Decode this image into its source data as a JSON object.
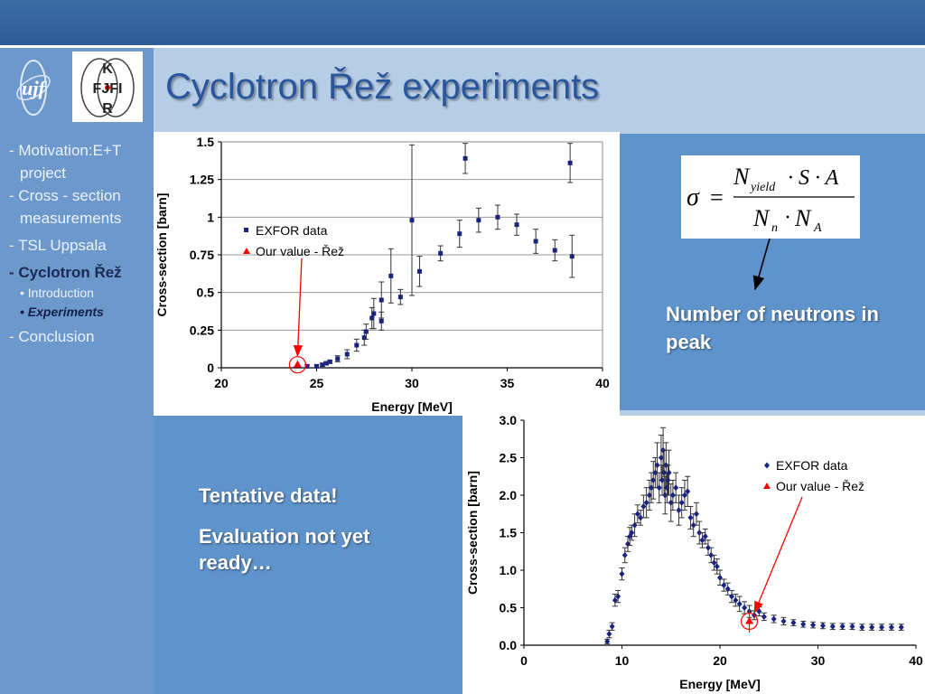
{
  "title": "Cyclotron Řež experiments",
  "logos": {
    "left": "ujf",
    "right": [
      "K",
      "FJFI",
      "R"
    ]
  },
  "sidebar": {
    "items": [
      {
        "label": "- Motivation:E+T",
        "cont": "project"
      },
      {
        "label": "- Cross - section",
        "cont": "measurements"
      },
      {
        "label": "- TSL Uppsala"
      },
      {
        "label": "- Cyclotron Řež",
        "active": true
      },
      {
        "label": "• Introduction",
        "sub": true
      },
      {
        "label": "• Experiments",
        "sub": true,
        "active": true
      },
      {
        "label": "- Conclusion"
      }
    ]
  },
  "formula": {
    "sigma": "σ",
    "eq": "=",
    "num_N": "N",
    "num_sub": "yield",
    "num_rest": "· S · A",
    "den_N1": "N",
    "den_sub1": "n",
    "den_dot": "·",
    "den_N2": "N",
    "den_sub2": "A"
  },
  "annotation": "Number of neutrons in peak",
  "notes": [
    "Tentative data!",
    "Evaluation not yet ready…"
  ],
  "colors": {
    "exfor": "#1a237e",
    "our": "#ff0000",
    "accent": "#2a569e"
  },
  "chart_data": [
    {
      "type": "scatter",
      "xlabel": "Energy [MeV]",
      "ylabel": "Cross-section [barn]",
      "xlim": [
        20,
        40
      ],
      "ylim": [
        0,
        1.5
      ],
      "xticks": [
        "20",
        "25",
        "30",
        "35",
        "40"
      ],
      "yticks": [
        "0",
        "0.25",
        "0.5",
        "0.75",
        "1",
        "1.25",
        "1.5"
      ],
      "grid": true,
      "legend_position": "left-middle",
      "series": [
        {
          "name": "EXFOR data",
          "marker": "square",
          "x": [
            24.5,
            25,
            25.3,
            25.5,
            25.7,
            26.1,
            26.6,
            27.1,
            27.5,
            27.6,
            27.9,
            28.0,
            28.4,
            28.4,
            28.9,
            29.4,
            30,
            30.4,
            31.5,
            32.5,
            32.8,
            33.5,
            34.5,
            35.5,
            36.5,
            37.5,
            38.3,
            38.4
          ],
          "y": [
            0.01,
            0.01,
            0.02,
            0.03,
            0.04,
            0.06,
            0.09,
            0.15,
            0.2,
            0.24,
            0.33,
            0.36,
            0.31,
            0.45,
            0.61,
            0.47,
            0.98,
            0.64,
            0.76,
            0.89,
            1.39,
            0.98,
            1.0,
            0.95,
            0.84,
            0.78,
            1.36,
            0.74
          ],
          "err": [
            0.01,
            0.01,
            0.01,
            0.01,
            0.01,
            0.02,
            0.03,
            0.04,
            0.05,
            0.05,
            0.07,
            0.1,
            0.06,
            0.12,
            0.18,
            0.05,
            0.5,
            0.1,
            0.05,
            0.09,
            0.1,
            0.08,
            0.08,
            0.07,
            0.08,
            0.07,
            0.13,
            0.14
          ]
        },
        {
          "name": "Our value - Řež",
          "marker": "triangle",
          "x": [
            24
          ],
          "y": [
            0.02
          ],
          "err": [
            0.01
          ]
        }
      ]
    },
    {
      "type": "scatter",
      "xlabel": "Energy [MeV]",
      "ylabel": "Cross-section [barn]",
      "xlim": [
        0,
        40
      ],
      "ylim": [
        0,
        3.0
      ],
      "xticks": [
        "0",
        "10",
        "20",
        "30",
        "40"
      ],
      "yticks": [
        "0.0",
        "0.5",
        "1.0",
        "1.5",
        "2.0",
        "2.5",
        "3.0"
      ],
      "grid": false,
      "legend_position": "top-right",
      "series": [
        {
          "name": "EXFOR data",
          "marker": "diamond",
          "x": [
            8.5,
            8.7,
            9.0,
            9.3,
            9.6,
            10.0,
            10.3,
            10.6,
            10.8,
            11.0,
            11.3,
            11.6,
            11.9,
            12.2,
            12.5,
            12.8,
            13.0,
            13.2,
            13.4,
            13.6,
            13.8,
            14.0,
            14.1,
            14.2,
            14.3,
            14.4,
            14.5,
            14.6,
            14.7,
            14.8,
            15.0,
            15.2,
            15.5,
            15.8,
            16.1,
            16.4,
            16.7,
            17.0,
            17.3,
            17.6,
            17.9,
            18.2,
            18.5,
            18.8,
            19.1,
            19.4,
            19.7,
            20.0,
            20.4,
            20.8,
            21.2,
            21.6,
            22.0,
            22.5,
            23.0,
            23.5,
            24.0,
            24.5,
            25.5,
            26.5,
            27.5,
            28.5,
            29.5,
            30.5,
            31.5,
            32.5,
            33.5,
            34.5,
            35.5,
            36.5,
            37.5,
            38.5
          ],
          "y": [
            0.05,
            0.15,
            0.25,
            0.6,
            0.65,
            0.95,
            1.2,
            1.35,
            1.45,
            1.5,
            1.6,
            1.75,
            1.7,
            1.85,
            1.9,
            2.0,
            2.1,
            2.2,
            2.3,
            2.4,
            2.1,
            2.5,
            2.2,
            2.6,
            2.3,
            2.0,
            2.4,
            2.1,
            2.2,
            2.3,
            1.9,
            2.0,
            2.1,
            1.8,
            1.9,
            2.0,
            2.05,
            1.7,
            1.6,
            1.75,
            1.5,
            1.4,
            1.45,
            1.3,
            1.2,
            1.1,
            1.05,
            0.9,
            0.8,
            0.75,
            0.65,
            0.6,
            0.55,
            0.5,
            0.45,
            0.4,
            0.45,
            0.38,
            0.35,
            0.32,
            0.3,
            0.28,
            0.27,
            0.26,
            0.25,
            0.25,
            0.25,
            0.24,
            0.24,
            0.24,
            0.24,
            0.24
          ],
          "err": [
            0.03,
            0.05,
            0.05,
            0.08,
            0.08,
            0.08,
            0.1,
            0.1,
            0.12,
            0.1,
            0.15,
            0.12,
            0.1,
            0.15,
            0.2,
            0.2,
            0.2,
            0.25,
            0.2,
            0.3,
            0.2,
            0.3,
            0.2,
            0.3,
            0.3,
            0.25,
            0.3,
            0.2,
            0.2,
            0.3,
            0.25,
            0.2,
            0.2,
            0.2,
            0.2,
            0.2,
            0.2,
            0.15,
            0.15,
            0.15,
            0.15,
            0.1,
            0.1,
            0.1,
            0.1,
            0.1,
            0.1,
            0.1,
            0.08,
            0.08,
            0.08,
            0.08,
            0.1,
            0.08,
            0.08,
            0.06,
            0.06,
            0.05,
            0.05,
            0.05,
            0.04,
            0.04,
            0.04,
            0.04,
            0.04,
            0.04,
            0.04,
            0.04,
            0.04,
            0.04,
            0.04,
            0.04
          ]
        },
        {
          "name": "Our value - Řež",
          "marker": "triangle",
          "x": [
            23
          ],
          "y": [
            0.32
          ],
          "err": [
            0.15
          ]
        }
      ]
    }
  ]
}
